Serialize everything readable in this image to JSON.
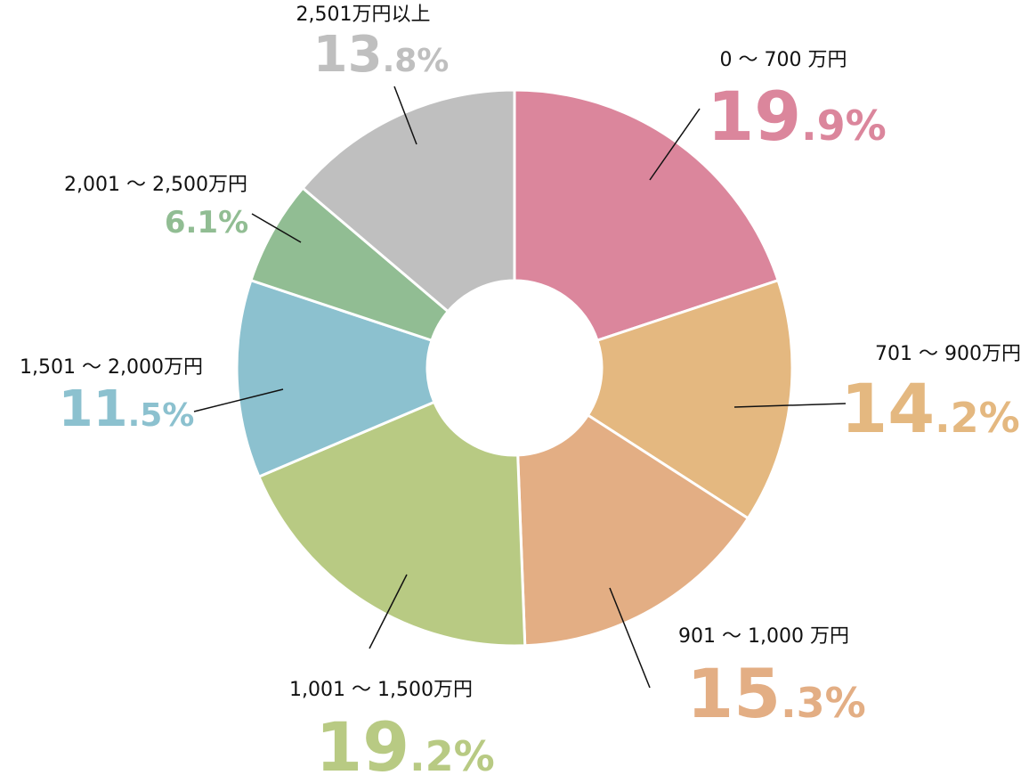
{
  "chart_data": {
    "type": "pie",
    "categories": [
      "0 〜 700 万円",
      "701 〜 900万円",
      "901 〜 1,000 万円",
      "1,001 〜 1,500万円",
      "1,501 〜 2,000万円",
      "2,001 〜 2,500万円",
      "2,501万円以上"
    ],
    "values": [
      19.9,
      14.2,
      15.3,
      19.2,
      11.5,
      6.1,
      13.8
    ],
    "value_labels": [
      "19.9%",
      "14.2%",
      "15.3%",
      "19.2%",
      "11.5%",
      "6.1%",
      "13.8%"
    ],
    "colors": [
      "#db869c",
      "#e4b880",
      "#e3ae84",
      "#b8ca83",
      "#8cc1cf",
      "#91bd93",
      "#bfbfbf"
    ]
  }
}
